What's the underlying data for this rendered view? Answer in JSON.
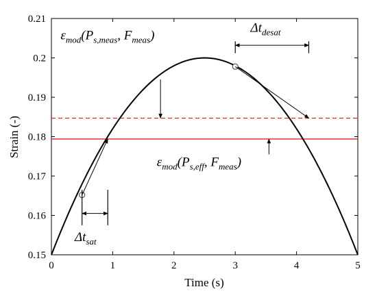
{
  "chart_data": {
    "type": "line",
    "title": "",
    "xlabel": "Time (s)",
    "ylabel": "Strain (-)",
    "xlim": [
      0,
      5
    ],
    "ylim": [
      0.15,
      0.21
    ],
    "xticks": [
      "0",
      "1",
      "2",
      "3",
      "4",
      "5"
    ],
    "yticks": [
      "0.15",
      "0.16",
      "0.17",
      "0.18",
      "0.19",
      "0.2",
      "0.21"
    ],
    "grid": false,
    "curve": {
      "shape": "parabola",
      "x": [
        0,
        0.5,
        1,
        1.5,
        2,
        2.5,
        3,
        3.5,
        4,
        4.5,
        5
      ],
      "y": [
        0.15,
        0.1652,
        0.1787,
        0.1882,
        0.1944,
        0.2,
        0.1978,
        0.1928,
        0.18,
        0.1652,
        0.15
      ],
      "color": "#000000"
    },
    "hlines": [
      {
        "y": 0.1847,
        "style": "dashed",
        "color": "#e02020"
      },
      {
        "y": 0.1794,
        "style": "solid",
        "color": "#e02020"
      }
    ],
    "markers": [
      {
        "x": 0.5,
        "y": 0.1652,
        "shape": "circle"
      },
      {
        "x": 3.0,
        "y": 0.1978,
        "shape": "circle"
      }
    ],
    "arrows": [
      {
        "from": [
          0.5,
          0.1652
        ],
        "to": [
          0.92,
          0.1794
        ]
      },
      {
        "from": [
          3.0,
          0.1978
        ],
        "to": [
          4.2,
          0.1847
        ]
      },
      {
        "from": [
          1.78,
          0.1945
        ],
        "to": [
          1.78,
          0.1847
        ]
      },
      {
        "from": [
          3.55,
          0.1755
        ],
        "to": [
          3.55,
          0.1794
        ]
      }
    ],
    "brackets": [
      {
        "x1": 0.5,
        "x2": 0.92,
        "y": 0.1605,
        "ybottom": 0.1575,
        "ytop": 0.1665
      },
      {
        "x1": 3.0,
        "x2": 4.2,
        "y": 0.2032,
        "ybottom": 0.2012,
        "ytop": 0.2042
      }
    ],
    "annotations": [
      {
        "id": "mod-meas",
        "base": "ε",
        "sub1": "mod",
        "mid": "(P",
        "sub2": "s,meas",
        "tail": ", F",
        "sub3": "meas",
        "end": ")",
        "x": 0.15,
        "y": 0.2047
      },
      {
        "id": "mod-eff",
        "base": "ε",
        "sub1": "mod",
        "mid": "(P",
        "sub2": "s,eff",
        "tail": ", F",
        "sub3": "meas",
        "end": ")",
        "x": 1.72,
        "y": 0.1725
      },
      {
        "id": "dt-desat",
        "base": "Δt",
        "sub1": "desat",
        "x": 3.25,
        "y": 0.2066
      },
      {
        "id": "dt-sat",
        "base": "Δt",
        "sub1": "sat",
        "x": 0.38,
        "y": 0.1535
      }
    ]
  }
}
